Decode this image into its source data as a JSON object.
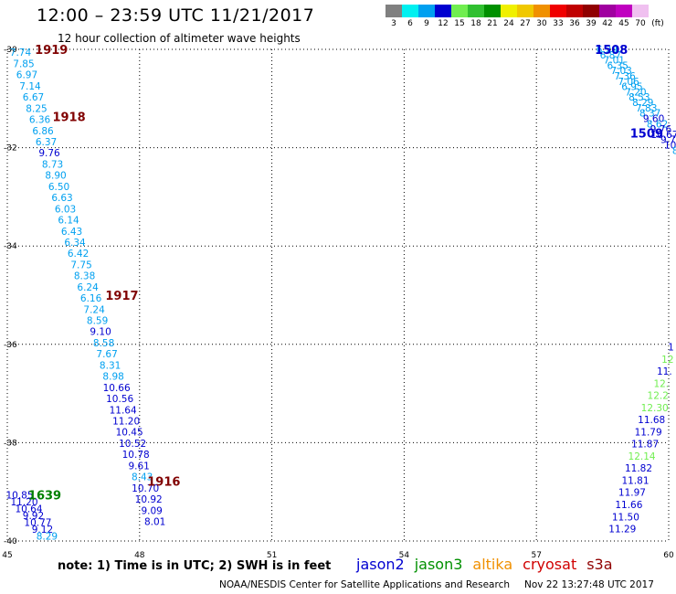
{
  "header": {
    "title": "12:00 – 23:59 UTC 11/21/2017",
    "subtitle": "12 hour collection of altimeter wave heights"
  },
  "legend": {
    "unit": "(ft)",
    "bins": [
      {
        "label": "3",
        "color": "#808080"
      },
      {
        "label": "6",
        "color": "#00f0f0"
      },
      {
        "label": "9",
        "color": "#00a0f0"
      },
      {
        "label": "12",
        "color": "#0000d0"
      },
      {
        "label": "15",
        "color": "#70ee50"
      },
      {
        "label": "18",
        "color": "#30c030"
      },
      {
        "label": "21",
        "color": "#009000"
      },
      {
        "label": "24",
        "color": "#f0f000"
      },
      {
        "label": "27",
        "color": "#f0c800"
      },
      {
        "label": "30",
        "color": "#f09000"
      },
      {
        "label": "33",
        "color": "#f00000"
      },
      {
        "label": "36",
        "color": "#c00000"
      },
      {
        "label": "39",
        "color": "#900000"
      },
      {
        "label": "42",
        "color": "#a000a0"
      },
      {
        "label": "45",
        "color": "#c000c0"
      },
      {
        "label": "70",
        "color": "#f0c0f0"
      }
    ]
  },
  "map": {
    "lon_min": 45,
    "lon_max": 60,
    "lat_min": -40,
    "lat_max": -30,
    "lon_ticks": [
      "45",
      "48",
      "51",
      "54",
      "57",
      "60"
    ],
    "lat_ticks": [
      "-30",
      "-32",
      "-34",
      "-36",
      "-38",
      "-40"
    ],
    "passes": [
      {
        "label": "1919",
        "color": "#800000",
        "lon": 46.0,
        "lat": -30.0
      },
      {
        "label": "1918",
        "color": "#800000",
        "lon": 46.4,
        "lat": -31.37
      },
      {
        "label": "1917",
        "color": "#800000",
        "lon": 47.6,
        "lat": -35.0
      },
      {
        "label": "1916",
        "color": "#800000",
        "lon": 48.55,
        "lat": -38.78
      },
      {
        "label": "1639",
        "color": "#008000",
        "lon": 45.85,
        "lat": -39.06
      },
      {
        "label": "1508",
        "color": "#0000d0",
        "lon": 58.7,
        "lat": -30.0
      },
      {
        "label": "1509",
        "color": "#0000d0",
        "lon": 59.5,
        "lat": -31.7
      }
    ],
    "tracks": [
      {
        "lon_start": 45.3,
        "lon_end": 48.35,
        "lat_start": -30.06,
        "lat_end": -39.6,
        "values": [
          "7.74",
          "7.85",
          "6.97",
          "7.14",
          "6.67",
          "8.25",
          "6.36",
          "6.86",
          "6.37",
          "9.76",
          "8.73",
          "8.90",
          "6.50",
          "6.63",
          "6.03",
          "6.14",
          "6.43",
          "6.34",
          "6.42",
          "7.75",
          "8.38",
          "6.24",
          "6.16",
          "7.24",
          "8.59",
          "9.10",
          "8.58",
          "7.67",
          "8.31",
          "8.98",
          "10.66",
          "10.56",
          "11.64",
          "11.20",
          "10.45",
          "10.52",
          "10.78",
          "9.61",
          "8.43",
          "10.70",
          "10.92",
          "9.09",
          "8.01"
        ],
        "colors": [
          "#00a0f0",
          "#00a0f0",
          "#00a0f0",
          "#00a0f0",
          "#00a0f0",
          "#00a0f0",
          "#00a0f0",
          "#00a0f0",
          "#00a0f0",
          "#0000d0",
          "#00a0f0",
          "#00a0f0",
          "#00a0f0",
          "#00a0f0",
          "#00a0f0",
          "#00a0f0",
          "#00a0f0",
          "#00a0f0",
          "#00a0f0",
          "#00a0f0",
          "#00a0f0",
          "#00a0f0",
          "#00a0f0",
          "#00a0f0",
          "#00a0f0",
          "#0000d0",
          "#00a0f0",
          "#00a0f0",
          "#00a0f0",
          "#00a0f0",
          "#0000d0",
          "#0000d0",
          "#0000d0",
          "#0000d0",
          "#0000d0",
          "#0000d0",
          "#0000d0",
          "#0000d0",
          "#00a0f0",
          "#0000d0",
          "#0000d0",
          "#0000d0",
          "#0000d0"
        ]
      },
      {
        "lon_start": 45.28,
        "lon_end": 45.9,
        "lat_start": -39.06,
        "lat_end": -39.9,
        "values": [
          "10.85",
          "11.20",
          "10.64",
          "9.92",
          "10.77",
          "9.12",
          "8.29"
        ],
        "colors": [
          "#0000d0",
          "#0000d0",
          "#0000d0",
          "#0000d0",
          "#0000d0",
          "#0000d0",
          "#00a0f0"
        ]
      },
      {
        "lon_start": 58.6,
        "lon_end": 60.15,
        "lat_start": -30.0,
        "lat_end": -32.05,
        "values": [
          "6.29",
          "6.87",
          "7.01",
          "6.35",
          "7.03",
          "7.36",
          "7.06",
          "6.95",
          "7.20",
          "8.53",
          "8.29",
          "7.83",
          "8.37",
          "9.60",
          "8.62",
          "9.76",
          "10.67",
          "9.7",
          "10.",
          "8"
        ],
        "colors": [
          "#00a0f0",
          "#00a0f0",
          "#00a0f0",
          "#00a0f0",
          "#00a0f0",
          "#00a0f0",
          "#00a0f0",
          "#00a0f0",
          "#00a0f0",
          "#00a0f0",
          "#00a0f0",
          "#00a0f0",
          "#00a0f0",
          "#0000d0",
          "#00a0f0",
          "#0000d0",
          "#0000d0",
          "#0000d0",
          "#0000d0",
          "#00a0f0"
        ]
      },
      {
        "lon_start": 60.05,
        "lon_end": 58.95,
        "lat_start": -36.05,
        "lat_end": -39.75,
        "values": [
          "1",
          "12",
          "11.",
          "12.",
          "12.2",
          "12.30",
          "11.68",
          "11.79",
          "11.87",
          "12.14",
          "11.82",
          "11.81",
          "11.97",
          "11.66",
          "11.50",
          "11.29"
        ],
        "colors": [
          "#0000d0",
          "#70ee50",
          "#0000d0",
          "#70ee50",
          "#70ee50",
          "#70ee50",
          "#0000d0",
          "#0000d0",
          "#0000d0",
          "#70ee50",
          "#0000d0",
          "#0000d0",
          "#0000d0",
          "#0000d0",
          "#0000d0",
          "#0000d0"
        ]
      }
    ]
  },
  "notes": {
    "text": "note: 1) Time is in UTC; 2) SWH is in feet"
  },
  "satellites": [
    {
      "name": "jason2",
      "color": "#0000d0"
    },
    {
      "name": "jason3",
      "color": "#009000"
    },
    {
      "name": "altika",
      "color": "#f09000"
    },
    {
      "name": "cryosat",
      "color": "#d00000"
    },
    {
      "name": "s3a",
      "color": "#900000"
    }
  ],
  "footer": {
    "credit": "NOAA/NESDIS Center for Satellite Applications and Research",
    "timestamp": "Nov 22 13:27:48 UTC 2017"
  }
}
